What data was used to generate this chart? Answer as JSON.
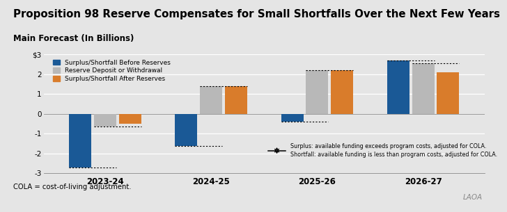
{
  "title": "Proposition 98 Reserve Compensates for Small Shortfalls Over the Next Few Years",
  "subtitle": "Main Forecast (In Billions)",
  "footnote": "COLA = cost-of-living adjustment.",
  "watermark": "LAOA",
  "categories": [
    "2023-24",
    "2024-25",
    "2025-26",
    "2026-27"
  ],
  "series": {
    "before": [
      -2.7,
      -1.6,
      -0.4,
      2.7
    ],
    "reserve": [
      -0.65,
      1.4,
      2.2,
      2.55
    ],
    "after": [
      -0.5,
      1.4,
      2.2,
      2.1
    ]
  },
  "colors": {
    "before": "#1a5996",
    "reserve": "#b8b8b8",
    "after": "#d97c2b"
  },
  "legend_labels": [
    "Surplus/Shortfall Before Reserves",
    "Reserve Deposit or Withdrawal",
    "Surplus/Shortfall After Reserves"
  ],
  "ylim": [
    -3.0,
    3.0
  ],
  "yticks": [
    -3,
    -2,
    -1,
    0,
    1,
    2,
    3
  ],
  "ytick_labels": [
    "-3",
    "-2",
    "-1",
    "0",
    "1",
    "2",
    "$3"
  ],
  "annotation_surplus": "Surplus: available funding exceeds program costs, adjusted for COLA.",
  "annotation_shortfall": "Shortfall: available funding is less than program costs, adjusted for COLA.",
  "bg_color": "#e5e5e5",
  "bar_width": 0.21
}
